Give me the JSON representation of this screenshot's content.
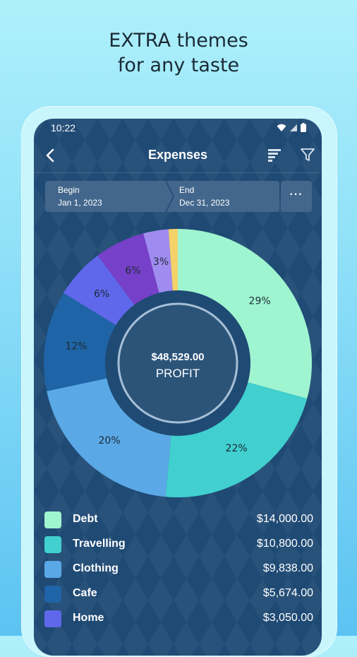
{
  "promo": {
    "line1": "EXTRA themes",
    "line2": "for any taste"
  },
  "status_bar": {
    "time": "10:22"
  },
  "app_bar": {
    "title": "Expenses"
  },
  "date_range": {
    "begin_label": "Begin",
    "begin_value": "Jan 1, 2023",
    "end_label": "End",
    "end_value": "Dec 31, 2023",
    "more_label": "···"
  },
  "donut": {
    "amount": "$48,529.00",
    "caption": "PROFIT"
  },
  "chart_data": {
    "type": "pie",
    "slices": [
      {
        "label": "29%",
        "value": 29,
        "color": "#9ff5d0"
      },
      {
        "label": "22%",
        "value": 22,
        "color": "#41d0cf"
      },
      {
        "label": "20%",
        "value": 20,
        "color": "#5aa8e6"
      },
      {
        "label": "12%",
        "value": 12,
        "color": "#1f64a6"
      },
      {
        "label": "6%",
        "value": 6,
        "color": "#5f68ea"
      },
      {
        "label": "6%",
        "value": 6,
        "color": "#7640c8"
      },
      {
        "label": "3%",
        "value": 3,
        "color": "#a08cf0"
      },
      {
        "label": "",
        "value": 1.1,
        "color": "#f3d26a"
      }
    ]
  },
  "legend": [
    {
      "category": "Debt",
      "amount": "$14,000.00",
      "color": "#9ff5d0"
    },
    {
      "category": "Travelling",
      "amount": "$10,800.00",
      "color": "#41d0cf"
    },
    {
      "category": "Clothing",
      "amount": "$9,838.00",
      "color": "#5aa8e6"
    },
    {
      "category": "Cafe",
      "amount": "$5,674.00",
      "color": "#1f64a6"
    },
    {
      "category": "Home",
      "amount": "$3,050.00",
      "color": "#5f68ea"
    }
  ]
}
